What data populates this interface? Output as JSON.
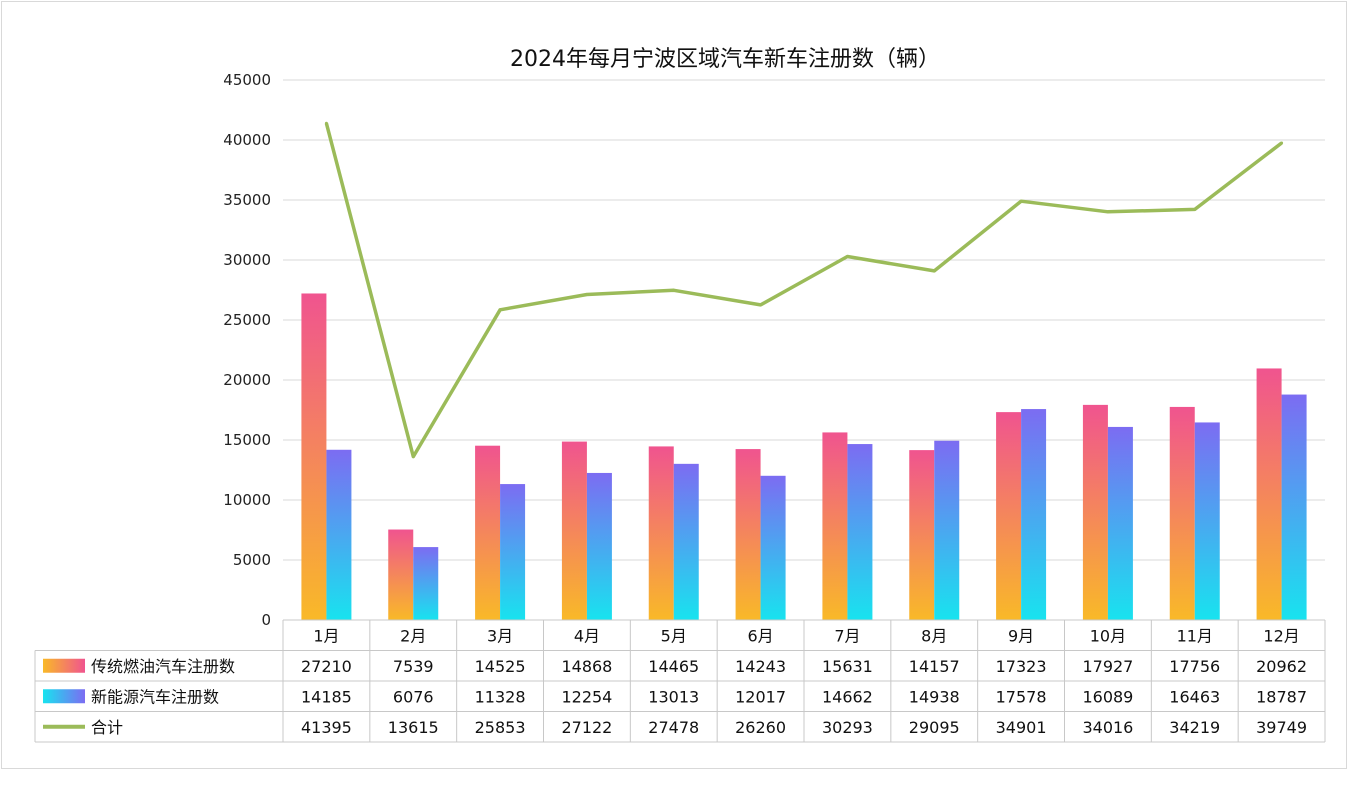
{
  "chart_data": {
    "type": "bar",
    "title": "2024年每月宁波区域汽车新车注册数（辆）",
    "categories": [
      "1月",
      "2月",
      "3月",
      "4月",
      "5月",
      "6月",
      "7月",
      "8月",
      "9月",
      "10月",
      "11月",
      "12月"
    ],
    "ylim": [
      0,
      45000
    ],
    "yticks": [
      "0",
      "5000",
      "10000",
      "15000",
      "20000",
      "25000",
      "30000",
      "35000",
      "40000",
      "45000"
    ],
    "grid": true,
    "legend": "data-table-left",
    "series": [
      {
        "name": "传统燃油汽车注册数",
        "kind": "bar",
        "color_top": "#f0548f",
        "color_bottom": "#f9b928",
        "values": [
          27210,
          7539,
          14525,
          14868,
          14465,
          14243,
          15631,
          14157,
          17323,
          17927,
          17756,
          20962
        ]
      },
      {
        "name": "新能源汽车注册数",
        "kind": "bar",
        "color_top": "#7c6cf2",
        "color_bottom": "#18e3ef",
        "values": [
          14185,
          6076,
          11328,
          12254,
          13013,
          12017,
          14662,
          14938,
          17578,
          16089,
          16463,
          18787
        ]
      },
      {
        "name": "合计",
        "kind": "line",
        "color": "#9bbb59",
        "values": [
          41395,
          13615,
          25853,
          27122,
          27478,
          26260,
          30293,
          29095,
          34901,
          34016,
          34219,
          39749
        ]
      }
    ]
  }
}
